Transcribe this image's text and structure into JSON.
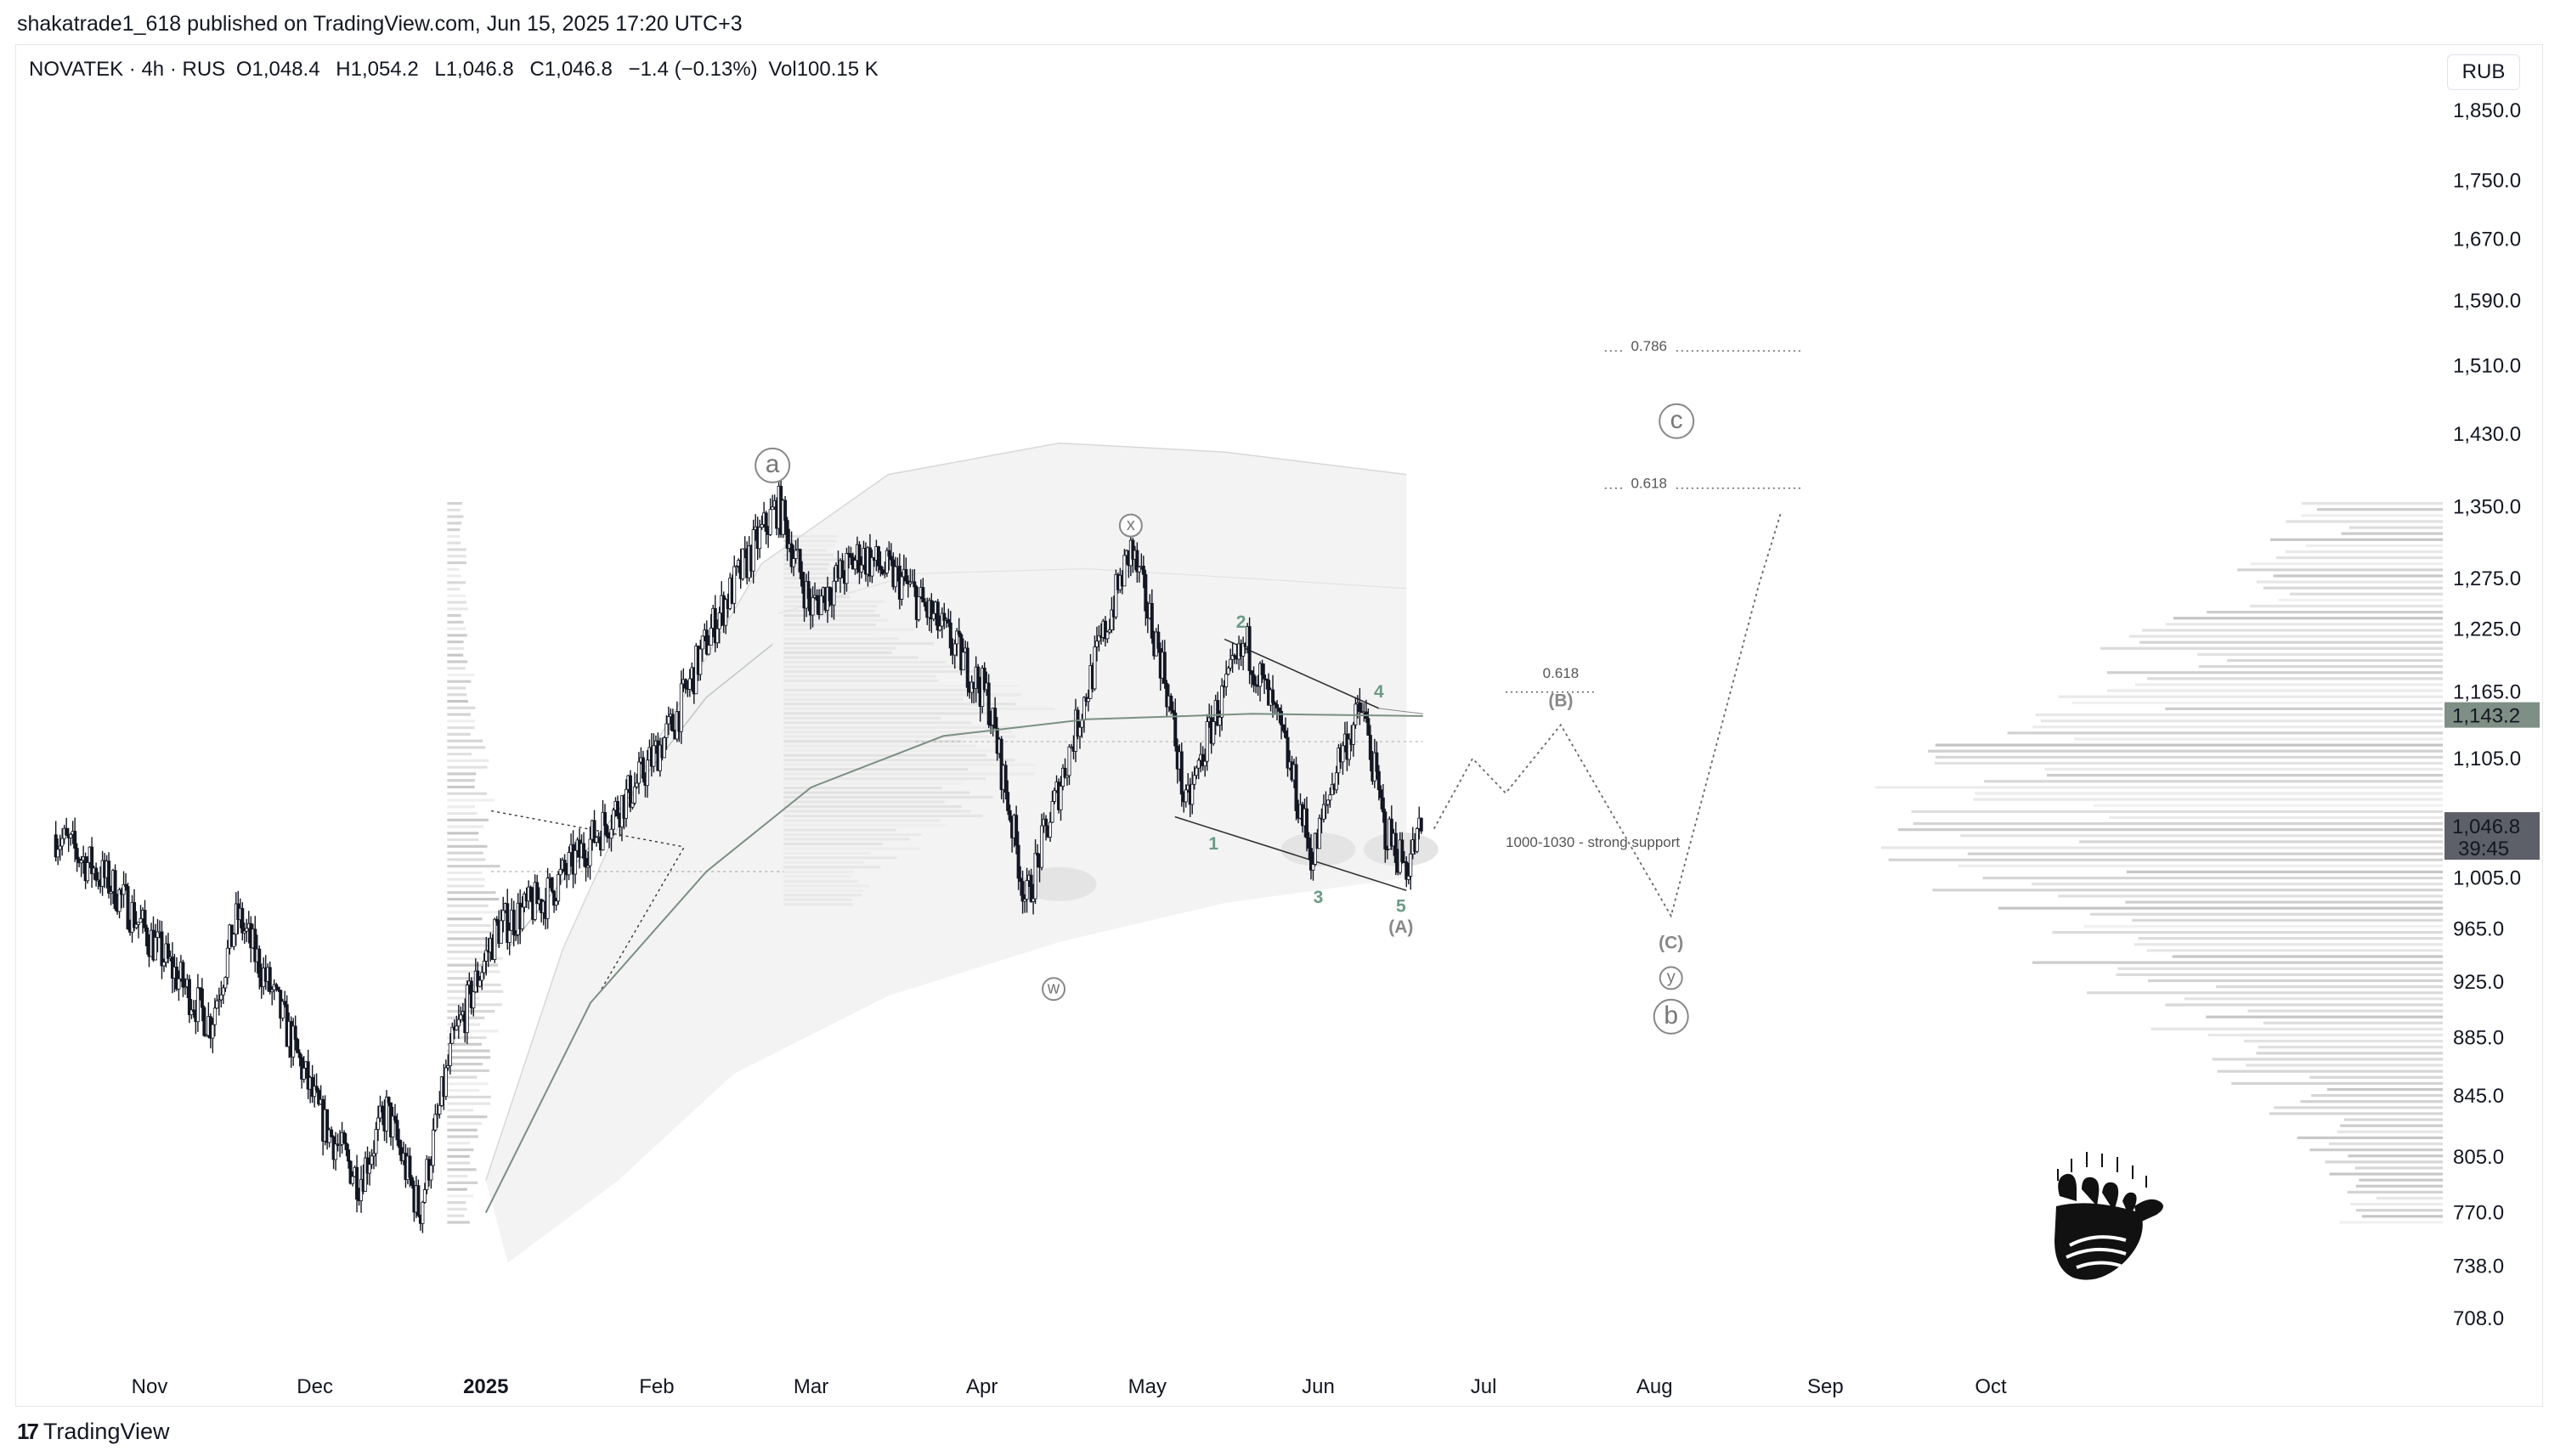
{
  "header": {
    "published_line": "shakatrade1_618 published on TradingView.com, Jun 15, 2025 17:20 UTC+3"
  },
  "legend": {
    "symbol": "NOVATEK · 4h · RUS",
    "open_label": "O",
    "open": "1,048.4",
    "high_label": "H",
    "high": "1,054.2",
    "low_label": "L",
    "low": "1,046.8",
    "close_label": "C",
    "close": "1,046.8",
    "change": "−1.4 (−0.13%)",
    "volume_label": "Vol",
    "volume": "100.15 K"
  },
  "currency_button": "RUB",
  "footer": {
    "brand": "TradingView"
  },
  "colors": {
    "candle": "#131722",
    "ma": "#7a8f82",
    "band": "#eeeeee",
    "wave_label_green": "#6b9a86",
    "wave_label_gray": "#888888",
    "price_badge_current": "#5d6068",
    "price_badge_ma": "#7e8f85"
  },
  "chart_data": {
    "type": "line",
    "subtype": "candlestick-with-volume-profile",
    "x_ticks": [
      "Nov",
      "Dec",
      "2025",
      "Feb",
      "Mar",
      "Apr",
      "May",
      "Jun",
      "Jul",
      "Aug",
      "Sep",
      "Oct"
    ],
    "y_ticks": [
      "1,850.0",
      "1,750.0",
      "1,670.0",
      "1,590.0",
      "1,510.0",
      "1,430.0",
      "1,350.0",
      "1,275.0",
      "1,225.0",
      "1,165.0",
      "1,105.0",
      "1,005.0",
      "965.0",
      "925.0",
      "885.0",
      "845.0",
      "805.0",
      "770.0",
      "738.0",
      "708.0"
    ],
    "y_scale": "log",
    "ylim": [
      690,
      1900
    ],
    "price_badges": {
      "current": "1,046.8",
      "countdown": "39:45",
      "ma": "1,143.2"
    },
    "price_path": [
      [
        "2024-10-15",
        1040
      ],
      [
        "2024-10-25",
        1000
      ],
      [
        "2024-11-05",
        935
      ],
      [
        "2024-11-12",
        895
      ],
      [
        "2024-11-17",
        975
      ],
      [
        "2024-11-25",
        900
      ],
      [
        "2024-12-02",
        830
      ],
      [
        "2024-12-09",
        790
      ],
      [
        "2024-12-14",
        835
      ],
      [
        "2024-12-20",
        770
      ],
      [
        "2024-12-26",
        880
      ],
      [
        "2025-01-03",
        965
      ],
      [
        "2025-01-12",
        990
      ],
      [
        "2025-01-20",
        1035
      ],
      [
        "2025-01-28",
        1080
      ],
      [
        "2025-02-04",
        1135
      ],
      [
        "2025-02-11",
        1225
      ],
      [
        "2025-02-18",
        1300
      ],
      [
        "2025-02-23",
        1352
      ],
      [
        "2025-03-01",
        1245
      ],
      [
        "2025-03-10",
        1300
      ],
      [
        "2025-03-18",
        1270
      ],
      [
        "2025-03-26",
        1215
      ],
      [
        "2025-04-02",
        1160
      ],
      [
        "2025-04-09",
        985
      ],
      [
        "2025-04-15",
        1080
      ],
      [
        "2025-04-22",
        1200
      ],
      [
        "2025-04-28",
        1305
      ],
      [
        "2025-05-04",
        1185
      ],
      [
        "2025-05-08",
        1060
      ],
      [
        "2025-05-13",
        1140
      ],
      [
        "2025-05-19",
        1210
      ],
      [
        "2025-05-25",
        1130
      ],
      [
        "2025-05-31",
        1020
      ],
      [
        "2025-06-05",
        1110
      ],
      [
        "2025-06-09",
        1150
      ],
      [
        "2025-06-13",
        1045
      ],
      [
        "2025-06-17",
        1015
      ],
      [
        "2025-06-20",
        1047
      ]
    ],
    "moving_average": [
      [
        "2025-01-01",
        770
      ],
      [
        "2025-01-20",
        910
      ],
      [
        "2025-02-10",
        1010
      ],
      [
        "2025-03-01",
        1080
      ],
      [
        "2025-03-25",
        1125
      ],
      [
        "2025-04-20",
        1140
      ],
      [
        "2025-05-20",
        1145
      ],
      [
        "2025-06-20",
        1143
      ]
    ],
    "projection": [
      [
        "2025-06-22",
        1045
      ],
      [
        "2025-06-29",
        1105
      ],
      [
        "2025-07-05",
        1075
      ],
      [
        "2025-07-15",
        1135
      ],
      [
        "2025-08-04",
        975
      ],
      [
        "2025-08-20",
        1270
      ],
      [
        "2025-08-24",
        1345
      ]
    ],
    "wave_labels": [
      {
        "text": "a",
        "x": "2025-02-22",
        "y": 1395,
        "style": "circle"
      },
      {
        "text": "x",
        "x": "2025-04-28",
        "y": 1330,
        "style": "circle-small"
      },
      {
        "text": "w",
        "x": "2025-04-14",
        "y": 920,
        "style": "circle-small"
      },
      {
        "text": "1",
        "x": "2025-05-13",
        "y": 1028,
        "style": "green"
      },
      {
        "text": "2",
        "x": "2025-05-18",
        "y": 1226,
        "style": "green"
      },
      {
        "text": "3",
        "x": "2025-06-01",
        "y": 985,
        "style": "green"
      },
      {
        "text": "4",
        "x": "2025-06-12",
        "y": 1160,
        "style": "green"
      },
      {
        "text": "5",
        "x": "2025-06-16",
        "y": 978,
        "style": "green"
      },
      {
        "text": "(A)",
        "x": "2025-06-16",
        "y": 962,
        "style": "gray"
      },
      {
        "text": "(B)",
        "x": "2025-07-15",
        "y": 1152,
        "style": "gray"
      },
      {
        "text": "(C)",
        "x": "2025-08-04",
        "y": 950,
        "style": "gray"
      },
      {
        "text": "y",
        "x": "2025-08-04",
        "y": 928,
        "style": "circle-small"
      },
      {
        "text": "b",
        "x": "2025-08-04",
        "y": 900,
        "style": "circle"
      },
      {
        "text": "c",
        "x": "2025-08-05",
        "y": 1445,
        "style": "circle"
      }
    ],
    "annotations": [
      {
        "text": "0.786",
        "x": "2025-07-31",
        "y": 1528
      },
      {
        "text": "0.618",
        "x": "2025-07-31",
        "y": 1370
      },
      {
        "text": "0.618",
        "x": "2025-07-15",
        "y": 1178
      },
      {
        "text": "1000-1030 - strong support",
        "x": "2025-07-05",
        "y": 1030
      }
    ],
    "grid": false,
    "legend": "top-left"
  }
}
